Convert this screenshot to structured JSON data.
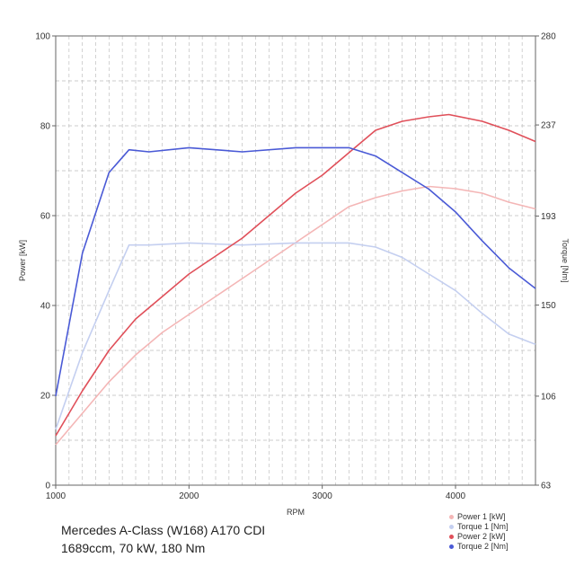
{
  "chart_data": {
    "type": "line",
    "x_label": "RPM",
    "y_left_label": "Power [kW]",
    "y_right_label": "Torque [Nm]",
    "x_range": [
      1000,
      4600
    ],
    "x_ticks": [
      1000,
      2000,
      3000,
      4000
    ],
    "y_left_range": [
      0,
      100
    ],
    "y_left_ticks": [
      0,
      20,
      40,
      60,
      80,
      100
    ],
    "y_right_range": [
      63,
      280
    ],
    "y_right_ticks": [
      63,
      106,
      150,
      193,
      237,
      280
    ],
    "grid": true,
    "legend_position": "bottom-right",
    "series": [
      {
        "name": "Power 1 [kW]",
        "axis": "left",
        "color": "#f4b6b6",
        "x": [
          1000,
          1200,
          1400,
          1600,
          1800,
          2000,
          2200,
          2400,
          2600,
          2800,
          3000,
          3200,
          3400,
          3600,
          3800,
          4000,
          4200,
          4400,
          4600
        ],
        "y": [
          9,
          16,
          23,
          29,
          34,
          38,
          42,
          46,
          50,
          54,
          58,
          62,
          64,
          65.5,
          66.5,
          66,
          65,
          63,
          61.5
        ]
      },
      {
        "name": "Torque 1 [Nm]",
        "axis": "right",
        "color": "#c4cff0",
        "x": [
          1000,
          1200,
          1400,
          1550,
          1700,
          2000,
          2400,
          2800,
          3200,
          3400,
          3600,
          3800,
          4000,
          4200,
          4400,
          4600
        ],
        "y": [
          90,
          127,
          157,
          179,
          179,
          180,
          179,
          180,
          180,
          178,
          173,
          165,
          157,
          146,
          136,
          131
        ]
      },
      {
        "name": "Power 2 [kW]",
        "axis": "left",
        "color": "#e0505a",
        "x": [
          1000,
          1200,
          1400,
          1600,
          1800,
          2000,
          2200,
          2400,
          2600,
          2800,
          3000,
          3200,
          3400,
          3600,
          3800,
          3950,
          4200,
          4400,
          4600
        ],
        "y": [
          11,
          21,
          30,
          37,
          42,
          47,
          51,
          55,
          60,
          65,
          69,
          74,
          79,
          81,
          82,
          82.5,
          81,
          79,
          76.5
        ]
      },
      {
        "name": "Torque 2 [Nm]",
        "axis": "right",
        "color": "#4a5ad6",
        "x": [
          1000,
          1200,
          1400,
          1550,
          1700,
          2000,
          2400,
          2800,
          3200,
          3400,
          3600,
          3800,
          4000,
          4200,
          4400,
          4600
        ],
        "y": [
          106,
          175,
          214,
          225,
          224,
          226,
          224,
          226,
          226,
          222,
          214,
          206,
          195,
          181,
          168,
          158
        ]
      }
    ]
  },
  "caption": {
    "line1": "Mercedes A-Class (W168) A170 CDI",
    "line2": "1689ccm, 70 kW, 180 Nm"
  },
  "legend": [
    {
      "label": "Power 1 [kW]",
      "color": "#f4b6b6"
    },
    {
      "label": "Torque 1 [Nm]",
      "color": "#c4cff0"
    },
    {
      "label": "Power 2 [kW]",
      "color": "#e0505a"
    },
    {
      "label": "Torque 2 [Nm]",
      "color": "#4a5ad6"
    }
  ]
}
